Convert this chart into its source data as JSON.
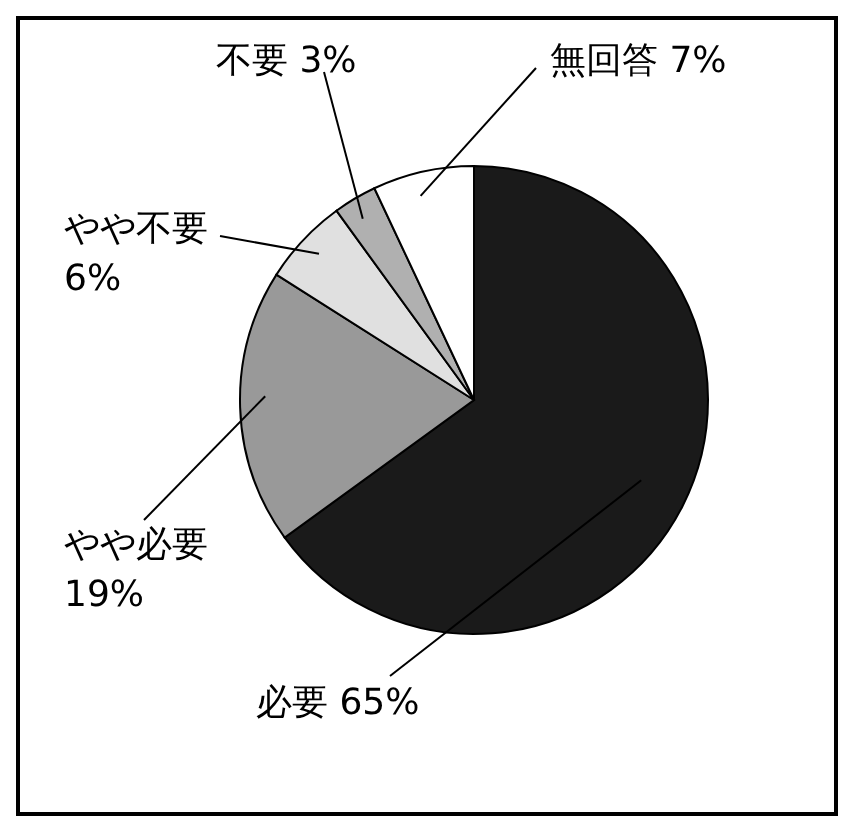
{
  "chart_data": {
    "type": "pie",
    "categories": [
      "必要",
      "やや必要",
      "やや不要",
      "不要",
      "無回答"
    ],
    "values": [
      65,
      19,
      6,
      3,
      7
    ],
    "value_labels": [
      "65%",
      "19%",
      "6%",
      "3%",
      "7%"
    ],
    "colors": [
      "#1a1a1a",
      "#999999",
      "#e0e0e0",
      "#b0b0b0",
      "#ffffff"
    ],
    "legend": false
  }
}
